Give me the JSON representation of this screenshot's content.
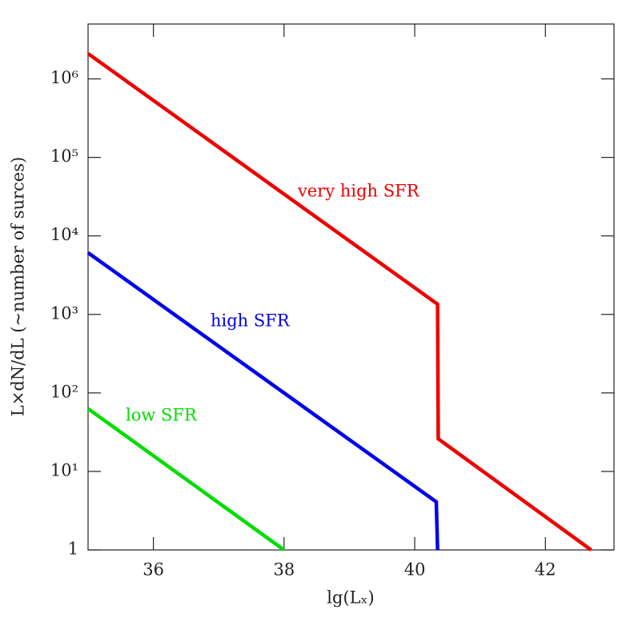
{
  "chart_data": {
    "type": "line",
    "xlabel": "lg(Lₓ)",
    "ylabel": "L×dN/dL (~number of surces)",
    "xlim": [
      35,
      43.05
    ],
    "xticks": [
      36,
      38,
      40,
      42
    ],
    "ylim": [
      1,
      5000000
    ],
    "yticks": [
      1,
      {
        "value": 10,
        "label": "10¹"
      },
      {
        "value": 100,
        "label": "10²"
      },
      {
        "value": 1000,
        "label": "10³"
      },
      {
        "value": 10000,
        "label": "10⁴"
      },
      {
        "value": 100000,
        "label": "10⁵"
      },
      {
        "value": 1000000,
        "label": "10⁶"
      }
    ],
    "log_y": true,
    "series": [
      {
        "name": "very high SFR",
        "color": "#ee0000",
        "x": [
          35,
          40.35,
          40.36,
          42.7
        ],
        "values": [
          2100000,
          1350,
          26,
          1
        ]
      },
      {
        "name": "high SFR",
        "color": "#0000ee",
        "x": [
          35,
          40.33,
          40.35
        ],
        "values": [
          6100,
          4.1,
          1
        ]
      },
      {
        "name": "low SFR",
        "color": "#00dd00",
        "x": [
          35,
          38.0
        ],
        "values": [
          63,
          1
        ]
      }
    ]
  }
}
